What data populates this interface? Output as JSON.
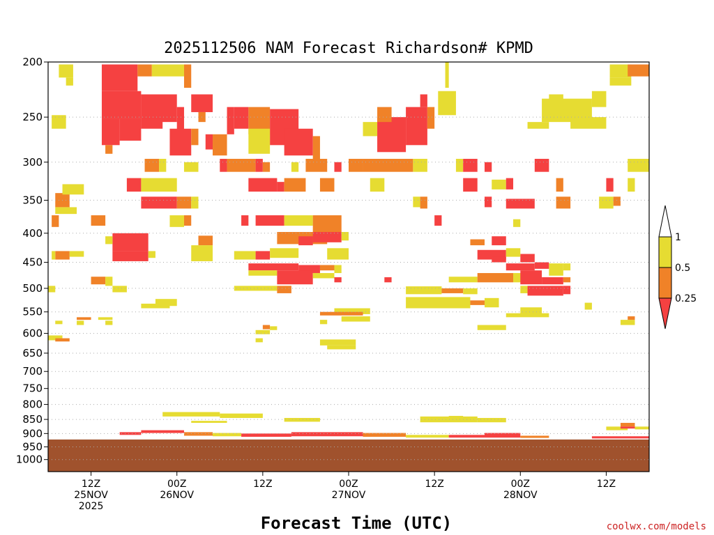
{
  "chart_data": {
    "type": "heatmap",
    "title": "2025112506 NAM Forecast Richardson# KPMD",
    "xlabel": "Forecast Time (UTC)",
    "ylabel": "",
    "credit": "coolwx.com/models",
    "y_axis": {
      "scale": "log-pressure",
      "range_hpa": [
        1050,
        200
      ],
      "ticks": [
        "200",
        "250",
        "300",
        "350",
        "400",
        "450",
        "500",
        "550",
        "600",
        "650",
        "700",
        "750",
        "800",
        "850",
        "900",
        "950",
        "1000"
      ]
    },
    "x_axis": {
      "range_hours": [
        0,
        84
      ],
      "ticks": [
        {
          "hour": 6,
          "line1": "12Z",
          "line2": "25NOV",
          "line3": "2025"
        },
        {
          "hour": 18,
          "line1": "00Z",
          "line2": "26NOV",
          "line3": ""
        },
        {
          "hour": 30,
          "line1": "12Z",
          "line2": "",
          "line3": ""
        },
        {
          "hour": 42,
          "line1": "00Z",
          "line2": "27NOV",
          "line3": ""
        },
        {
          "hour": 54,
          "line1": "12Z",
          "line2": "",
          "line3": ""
        },
        {
          "hour": 66,
          "line1": "00Z",
          "line2": "28NOV",
          "line3": ""
        },
        {
          "hour": 78,
          "line1": "12Z",
          "line2": "",
          "line3": ""
        }
      ]
    },
    "legend": {
      "placement": "right",
      "entries": [
        {
          "label": "1",
          "color": "#ffffff"
        },
        {
          "label": "0.5",
          "color": "#e6dc32"
        },
        {
          "label": "0.25",
          "color": "#f08228"
        },
        {
          "label": "",
          "color": "#f54141"
        }
      ],
      "tick_labels": [
        "1",
        "0.5",
        "0.25"
      ]
    },
    "below_ground_hpa": 922,
    "ground_color": "#a0522d",
    "colors": {
      "low": "#f54141",
      "mid": "#f08228",
      "high": "#e6dc32"
    },
    "cells_note": "Each cell: [hour_start, hour_end, hpa_top, hpa_bottom, class]; class 1=Ri<0.25, 2=0.25-0.5, 3=0.5-1",
    "cells": [
      [
        1.5,
        3.5,
        202,
        213,
        3
      ],
      [
        2.5,
        3.5,
        213,
        220,
        3
      ],
      [
        7.5,
        12.5,
        202,
        225,
        1
      ],
      [
        12.5,
        14.5,
        202,
        212,
        2
      ],
      [
        14.5,
        19,
        202,
        212,
        3
      ],
      [
        19,
        20,
        202,
        222,
        2
      ],
      [
        7.5,
        13,
        225,
        252,
        1
      ],
      [
        7.5,
        10,
        252,
        280,
        1
      ],
      [
        8,
        9,
        280,
        290,
        2
      ],
      [
        13,
        18,
        228,
        255,
        1
      ],
      [
        18,
        19,
        240,
        268,
        1
      ],
      [
        10,
        13,
        252,
        275,
        1
      ],
      [
        13,
        16,
        252,
        262,
        1
      ],
      [
        17,
        20,
        262,
        292,
        1
      ],
      [
        20,
        21,
        262,
        280,
        2
      ],
      [
        20,
        23,
        228,
        245,
        1
      ],
      [
        21,
        22,
        245,
        255,
        2
      ],
      [
        22,
        23,
        268,
        285,
        1
      ],
      [
        23,
        25,
        268,
        292,
        2
      ],
      [
        25,
        26,
        240,
        268,
        1
      ],
      [
        26,
        28,
        240,
        262,
        1
      ],
      [
        28,
        31,
        240,
        268,
        2
      ],
      [
        31,
        35,
        242,
        280,
        1
      ],
      [
        28,
        31,
        262,
        290,
        3
      ],
      [
        33,
        37,
        262,
        292,
        1
      ],
      [
        37,
        38,
        270,
        300,
        2
      ],
      [
        44,
        46,
        255,
        270,
        3
      ],
      [
        46,
        50,
        250,
        288,
        1
      ],
      [
        50,
        53,
        240,
        280,
        1
      ],
      [
        46,
        48,
        240,
        255,
        2
      ],
      [
        53,
        54,
        240,
        262,
        2
      ],
      [
        52,
        53,
        228,
        240,
        1
      ],
      [
        55.5,
        56,
        200,
        222,
        3
      ],
      [
        54.5,
        57,
        225,
        248,
        3
      ],
      [
        0.5,
        2.5,
        248,
        262,
        3
      ],
      [
        73,
        78,
        250,
        262,
        3
      ],
      [
        70,
        72,
        228,
        250,
        3
      ],
      [
        69,
        76,
        232,
        255,
        3
      ],
      [
        67,
        70,
        255,
        262,
        3
      ],
      [
        76,
        78,
        225,
        240,
        3
      ],
      [
        78.5,
        81.5,
        202,
        213,
        3
      ],
      [
        81,
        84,
        202,
        212,
        2
      ],
      [
        78.5,
        81.5,
        213,
        220,
        3
      ],
      [
        13.5,
        15.5,
        296,
        312,
        2
      ],
      [
        15.5,
        16.5,
        296,
        312,
        3
      ],
      [
        19,
        21,
        300,
        312,
        3
      ],
      [
        24,
        25,
        296,
        312,
        1
      ],
      [
        25,
        29,
        296,
        312,
        2
      ],
      [
        29,
        30,
        296,
        312,
        1
      ],
      [
        30,
        31,
        300,
        312,
        2
      ],
      [
        34,
        35,
        300,
        312,
        3
      ],
      [
        36,
        39,
        296,
        312,
        2
      ],
      [
        40,
        41,
        300,
        312,
        1
      ],
      [
        42,
        44,
        296,
        312,
        2
      ],
      [
        44,
        51,
        296,
        312,
        2
      ],
      [
        51,
        53,
        296,
        312,
        3
      ],
      [
        57,
        58,
        296,
        312,
        3
      ],
      [
        58,
        60,
        296,
        312,
        1
      ],
      [
        61,
        62,
        300,
        312,
        1
      ],
      [
        68,
        70,
        296,
        312,
        1
      ],
      [
        81,
        84,
        296,
        312,
        3
      ],
      [
        11,
        13,
        320,
        338,
        1
      ],
      [
        13,
        18,
        320,
        338,
        3
      ],
      [
        28,
        32,
        320,
        338,
        1
      ],
      [
        32,
        33,
        325,
        338,
        1
      ],
      [
        33,
        36,
        320,
        338,
        2
      ],
      [
        38,
        40,
        320,
        338,
        2
      ],
      [
        45,
        47,
        320,
        338,
        3
      ],
      [
        58,
        60,
        320,
        338,
        1
      ],
      [
        62,
        64,
        322,
        335,
        3
      ],
      [
        64,
        65,
        320,
        335,
        1
      ],
      [
        71,
        72,
        320,
        338,
        2
      ],
      [
        78,
        79,
        320,
        338,
        1
      ],
      [
        81,
        82,
        320,
        338,
        3
      ],
      [
        1,
        3,
        340,
        360,
        2
      ],
      [
        2,
        5,
        328,
        342,
        3
      ],
      [
        1,
        4,
        360,
        370,
        3
      ],
      [
        13,
        18,
        345,
        362,
        1
      ],
      [
        18,
        20,
        345,
        362,
        2
      ],
      [
        20,
        21,
        345,
        362,
        3
      ],
      [
        51,
        52,
        345,
        360,
        3
      ],
      [
        52,
        53,
        345,
        362,
        2
      ],
      [
        61,
        62,
        345,
        360,
        1
      ],
      [
        64,
        68,
        348,
        362,
        1
      ],
      [
        71,
        73,
        345,
        362,
        2
      ],
      [
        77,
        79,
        345,
        362,
        3
      ],
      [
        79,
        80,
        345,
        358,
        2
      ],
      [
        0.5,
        1.5,
        372,
        390,
        2
      ],
      [
        6,
        8,
        372,
        388,
        2
      ],
      [
        17,
        19,
        372,
        390,
        3
      ],
      [
        19,
        20,
        372,
        388,
        2
      ],
      [
        27,
        28,
        372,
        388,
        1
      ],
      [
        29,
        33,
        372,
        388,
        1
      ],
      [
        33,
        37,
        372,
        388,
        3
      ],
      [
        37,
        41,
        372,
        400,
        2
      ],
      [
        54,
        55,
        372,
        388,
        1
      ],
      [
        65,
        66,
        378,
        390,
        3
      ],
      [
        9,
        14,
        400,
        430,
        1
      ],
      [
        32,
        39,
        398,
        418,
        2
      ],
      [
        35,
        37,
        405,
        420,
        1
      ],
      [
        37,
        41,
        398,
        415,
        1
      ],
      [
        41,
        42,
        398,
        412,
        3
      ],
      [
        21,
        23,
        404,
        420,
        2
      ],
      [
        8,
        9,
        405,
        418,
        3
      ],
      [
        59,
        61,
        410,
        420,
        2
      ],
      [
        62,
        64,
        405,
        420,
        1
      ],
      [
        1,
        3,
        430,
        445,
        2
      ],
      [
        0.5,
        1,
        430,
        445,
        3
      ],
      [
        3,
        5,
        430,
        440,
        3
      ],
      [
        9,
        14,
        430,
        448,
        1
      ],
      [
        14,
        15,
        430,
        442,
        3
      ],
      [
        20,
        23,
        420,
        448,
        3
      ],
      [
        26,
        29,
        430,
        445,
        3
      ],
      [
        29,
        31,
        430,
        445,
        1
      ],
      [
        31,
        35,
        425,
        442,
        3
      ],
      [
        39,
        42,
        425,
        445,
        3
      ],
      [
        60,
        64,
        428,
        445,
        1
      ],
      [
        62,
        64,
        440,
        450,
        1
      ],
      [
        66,
        68,
        435,
        450,
        1
      ],
      [
        64,
        66,
        425,
        440,
        3
      ],
      [
        28,
        35,
        452,
        465,
        1
      ],
      [
        35,
        38,
        455,
        470,
        1
      ],
      [
        38,
        40,
        455,
        465,
        2
      ],
      [
        40,
        41,
        455,
        470,
        3
      ],
      [
        64,
        68,
        452,
        465,
        1
      ],
      [
        68,
        70,
        450,
        462,
        1
      ],
      [
        70,
        72,
        452,
        475,
        3
      ],
      [
        72,
        73,
        452,
        465,
        3
      ],
      [
        28,
        32,
        465,
        475,
        3
      ],
      [
        6,
        8,
        477,
        492,
        2
      ],
      [
        8,
        9,
        477,
        495,
        3
      ],
      [
        32,
        37,
        465,
        492,
        1
      ],
      [
        37,
        40,
        470,
        480,
        3
      ],
      [
        56,
        60,
        477,
        488,
        3
      ],
      [
        60,
        65,
        470,
        488,
        2
      ],
      [
        65,
        67,
        470,
        488,
        3
      ],
      [
        66,
        69,
        465,
        492,
        1
      ],
      [
        69,
        72,
        478,
        492,
        1
      ],
      [
        72,
        73,
        478,
        488,
        2
      ],
      [
        40,
        41,
        478,
        488,
        1
      ],
      [
        47,
        48,
        478,
        488,
        1
      ],
      [
        26,
        32,
        495,
        505,
        3
      ],
      [
        32,
        34,
        495,
        510,
        2
      ],
      [
        50,
        55,
        496,
        512,
        3
      ],
      [
        55,
        58,
        500,
        510,
        2
      ],
      [
        58,
        60,
        500,
        512,
        3
      ],
      [
        66,
        67,
        495,
        510,
        3
      ],
      [
        67,
        72,
        495,
        515,
        1
      ],
      [
        72,
        73,
        495,
        512,
        1
      ],
      [
        0,
        1,
        495,
        508,
        3
      ],
      [
        9,
        11,
        495,
        508,
        3
      ],
      [
        50,
        59,
        518,
        542,
        3
      ],
      [
        59,
        61,
        525,
        535,
        2
      ],
      [
        61,
        63,
        520,
        540,
        3
      ],
      [
        75,
        76,
        530,
        545,
        3
      ],
      [
        15,
        18,
        522,
        537,
        3
      ],
      [
        13,
        17,
        532,
        542,
        3
      ],
      [
        40,
        45,
        542,
        555,
        3
      ],
      [
        38,
        44,
        550,
        558,
        2
      ],
      [
        66,
        69,
        540,
        555,
        3
      ],
      [
        64,
        70,
        553,
        562,
        3
      ],
      [
        1,
        2,
        570,
        578,
        3
      ],
      [
        4,
        5,
        570,
        580,
        3
      ],
      [
        8,
        9,
        570,
        580,
        3
      ],
      [
        4,
        6,
        562,
        568,
        2
      ],
      [
        7,
        9,
        562,
        568,
        3
      ],
      [
        38,
        39,
        568,
        578,
        3
      ],
      [
        41,
        45,
        560,
        572,
        3
      ],
      [
        30,
        31,
        580,
        590,
        2
      ],
      [
        31,
        32,
        583,
        592,
        3
      ],
      [
        29,
        31,
        592,
        602,
        3
      ],
      [
        60,
        64,
        580,
        592,
        3
      ],
      [
        80,
        82,
        568,
        580,
        3
      ],
      [
        81,
        82,
        560,
        568,
        2
      ],
      [
        0,
        2,
        605,
        617,
        3
      ],
      [
        1,
        3,
        612,
        620,
        2
      ],
      [
        29,
        30,
        612,
        622,
        3
      ],
      [
        38,
        43,
        615,
        630,
        3
      ],
      [
        39,
        43,
        630,
        640,
        3
      ],
      [
        16,
        24,
        825,
        840,
        3
      ],
      [
        24,
        30,
        830,
        845,
        3
      ],
      [
        20,
        25,
        855,
        862,
        3
      ],
      [
        33,
        38,
        845,
        858,
        3
      ],
      [
        52,
        60,
        840,
        860,
        3
      ],
      [
        60,
        64,
        845,
        860,
        3
      ],
      [
        56,
        58,
        838,
        842,
        3
      ],
      [
        78,
        81,
        875,
        888,
        3
      ],
      [
        80,
        82,
        862,
        875,
        2
      ],
      [
        82,
        84,
        875,
        885,
        3
      ],
      [
        80,
        82,
        875,
        882,
        1
      ],
      [
        10,
        13,
        895,
        905,
        1
      ],
      [
        13,
        19,
        888,
        898,
        1
      ],
      [
        19,
        23,
        895,
        908,
        2
      ],
      [
        23,
        27,
        898,
        910,
        3
      ],
      [
        27,
        34,
        900,
        912,
        1
      ],
      [
        34,
        44,
        895,
        910,
        1
      ],
      [
        44,
        50,
        898,
        912,
        2
      ],
      [
        50,
        56,
        905,
        915,
        3
      ],
      [
        56,
        61,
        905,
        915,
        1
      ],
      [
        61,
        66,
        898,
        915,
        1
      ],
      [
        66,
        70,
        908,
        916,
        2
      ],
      [
        76,
        84,
        910,
        918,
        1
      ]
    ]
  }
}
